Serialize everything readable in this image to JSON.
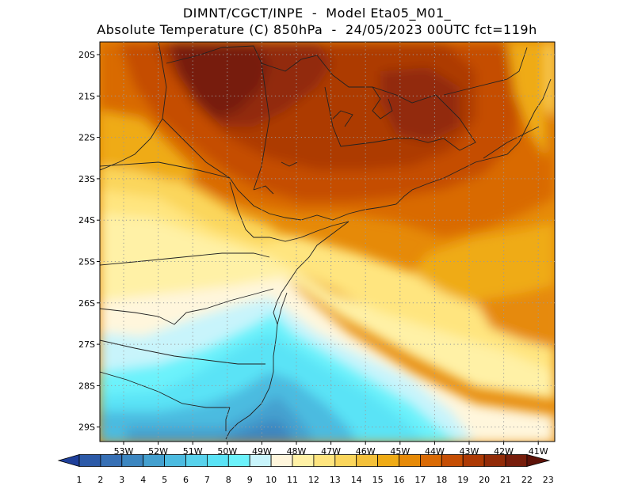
{
  "header": {
    "line1": "DIMNT/CGCT/INPE  -  Model Eta05_M01_",
    "line2": "Absolute Temperature (C) 850hPa  -  24/05/2023 00UTC fct=119h"
  },
  "map": {
    "lat_labels": [
      "20S",
      "21S",
      "22S",
      "23S",
      "24S",
      "25S",
      "26S",
      "27S",
      "28S",
      "29S"
    ],
    "lon_labels": [
      "53W",
      "52W",
      "51W",
      "50W",
      "49W",
      "48W",
      "47W",
      "46W",
      "45W",
      "44W",
      "43W",
      "42W",
      "41W"
    ],
    "gridlines": "dotted"
  },
  "colorbar": {
    "labels": [
      "1",
      "2",
      "3",
      "4",
      "5",
      "6",
      "7",
      "8",
      "9",
      "10",
      "11",
      "12",
      "13",
      "14",
      "15",
      "16",
      "17",
      "18",
      "19",
      "20",
      "21",
      "22",
      "23"
    ],
    "colors": [
      "#1e3f9a",
      "#2c5aa8",
      "#3770b5",
      "#3c86c0",
      "#44a0cf",
      "#4cbbe0",
      "#58d2ec",
      "#5ae3f6",
      "#6cf2fb",
      "#c8f4fb",
      "#fff6dc",
      "#fff1a6",
      "#ffe57f",
      "#fbd65c",
      "#f4c13a",
      "#efab15",
      "#e68a08",
      "#d96a05",
      "#c54e04",
      "#ad3a05",
      "#922b08",
      "#771d0b",
      "#5d1208"
    ]
  }
}
